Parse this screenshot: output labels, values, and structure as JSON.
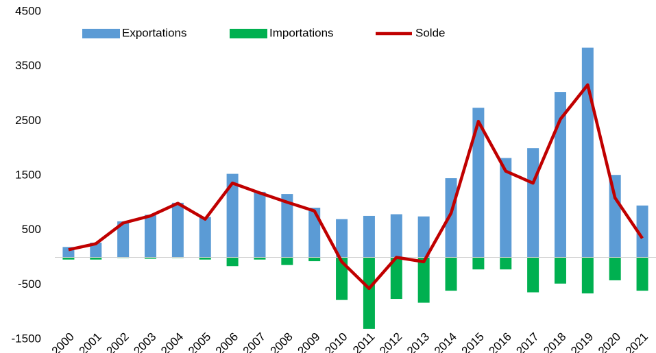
{
  "chart_data": {
    "type": "bar_line",
    "categories": [
      "2000",
      "2001",
      "2002",
      "2003",
      "2004",
      "2005",
      "2006",
      "2007",
      "2008",
      "2009",
      "2010",
      "2011",
      "2012",
      "2013",
      "2014",
      "2015",
      "2016",
      "2017",
      "2018",
      "2019",
      "2020",
      "2021"
    ],
    "series": [
      {
        "name": "Exportations",
        "type": "bar",
        "color": "#5b9bd5",
        "values": [
          190,
          270,
          660,
          780,
          1000,
          740,
          1530,
          1200,
          1160,
          910,
          700,
          760,
          790,
          750,
          1450,
          2740,
          1820,
          2000,
          3030,
          3840,
          1510,
          950
        ]
      },
      {
        "name": "Importations",
        "type": "bar",
        "color": "#00b050",
        "values": [
          -40,
          -40,
          -10,
          -25,
          -10,
          -40,
          -160,
          -40,
          -140,
          -70,
          -780,
          -1310,
          -760,
          -830,
          -610,
          -220,
          -220,
          -640,
          -480,
          -660,
          -420,
          -610
        ]
      },
      {
        "name": "Solde",
        "type": "line",
        "color": "#c00000",
        "values": [
          140,
          250,
          630,
          760,
          990,
          700,
          1360,
          1180,
          1010,
          850,
          -80,
          -570,
          0,
          -80,
          810,
          2490,
          1580,
          1360,
          2530,
          3160,
          1090,
          350
        ]
      }
    ],
    "ylim": [
      -1500,
      4500
    ],
    "yticks": [
      -1500,
      -500,
      500,
      1500,
      2500,
      3500,
      4500
    ],
    "grid": false,
    "legend": "top"
  }
}
